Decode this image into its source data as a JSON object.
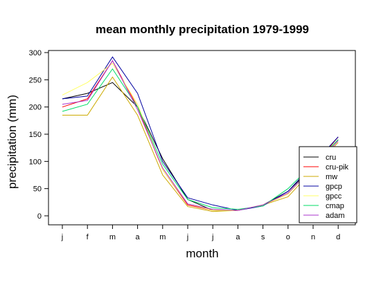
{
  "chart_data": {
    "type": "line",
    "title": "mean monthly precipitation 1979-1999",
    "xlabel": "month",
    "ylabel": "precipitation (mm)",
    "categories": [
      "j",
      "f",
      "m",
      "a",
      "m",
      "j",
      "j",
      "a",
      "s",
      "o",
      "n",
      "d"
    ],
    "ylim": [
      0,
      300
    ],
    "yticks": [
      "0",
      "50",
      "100",
      "150",
      "200",
      "250",
      "300"
    ],
    "grid": false,
    "legend_position": "bottom-right",
    "series": [
      {
        "name": "cru",
        "color": "#000000",
        "values": [
          215,
          225,
          245,
          200,
          105,
          30,
          10,
          10,
          20,
          45,
          90,
          140
        ]
      },
      {
        "name": "cru-pik",
        "color": "#ff0000",
        "values": [
          200,
          215,
          285,
          200,
          85,
          20,
          10,
          10,
          20,
          40,
          90,
          145
        ]
      },
      {
        "name": "mw",
        "color": "#ccaa00",
        "values": [
          185,
          185,
          255,
          185,
          75,
          17,
          8,
          10,
          20,
          35,
          85,
          135
        ]
      },
      {
        "name": "gpcp",
        "color": "#0000a0",
        "values": [
          215,
          220,
          292,
          225,
          100,
          33,
          20,
          10,
          18,
          45,
          95,
          145
        ]
      },
      {
        "name": "gpcc",
        "color": "#ffff66",
        "values": [
          222,
          245,
          280,
          205,
          85,
          22,
          10,
          10,
          20,
          40,
          90,
          140
        ]
      },
      {
        "name": "cmap",
        "color": "#00dd66",
        "values": [
          192,
          205,
          270,
          200,
          95,
          30,
          15,
          12,
          18,
          50,
          95,
          140
        ]
      },
      {
        "name": "adam",
        "color": "#aa33cc",
        "values": [
          205,
          212,
          285,
          195,
          88,
          22,
          12,
          10,
          20,
          42,
          88,
          138
        ]
      }
    ]
  }
}
